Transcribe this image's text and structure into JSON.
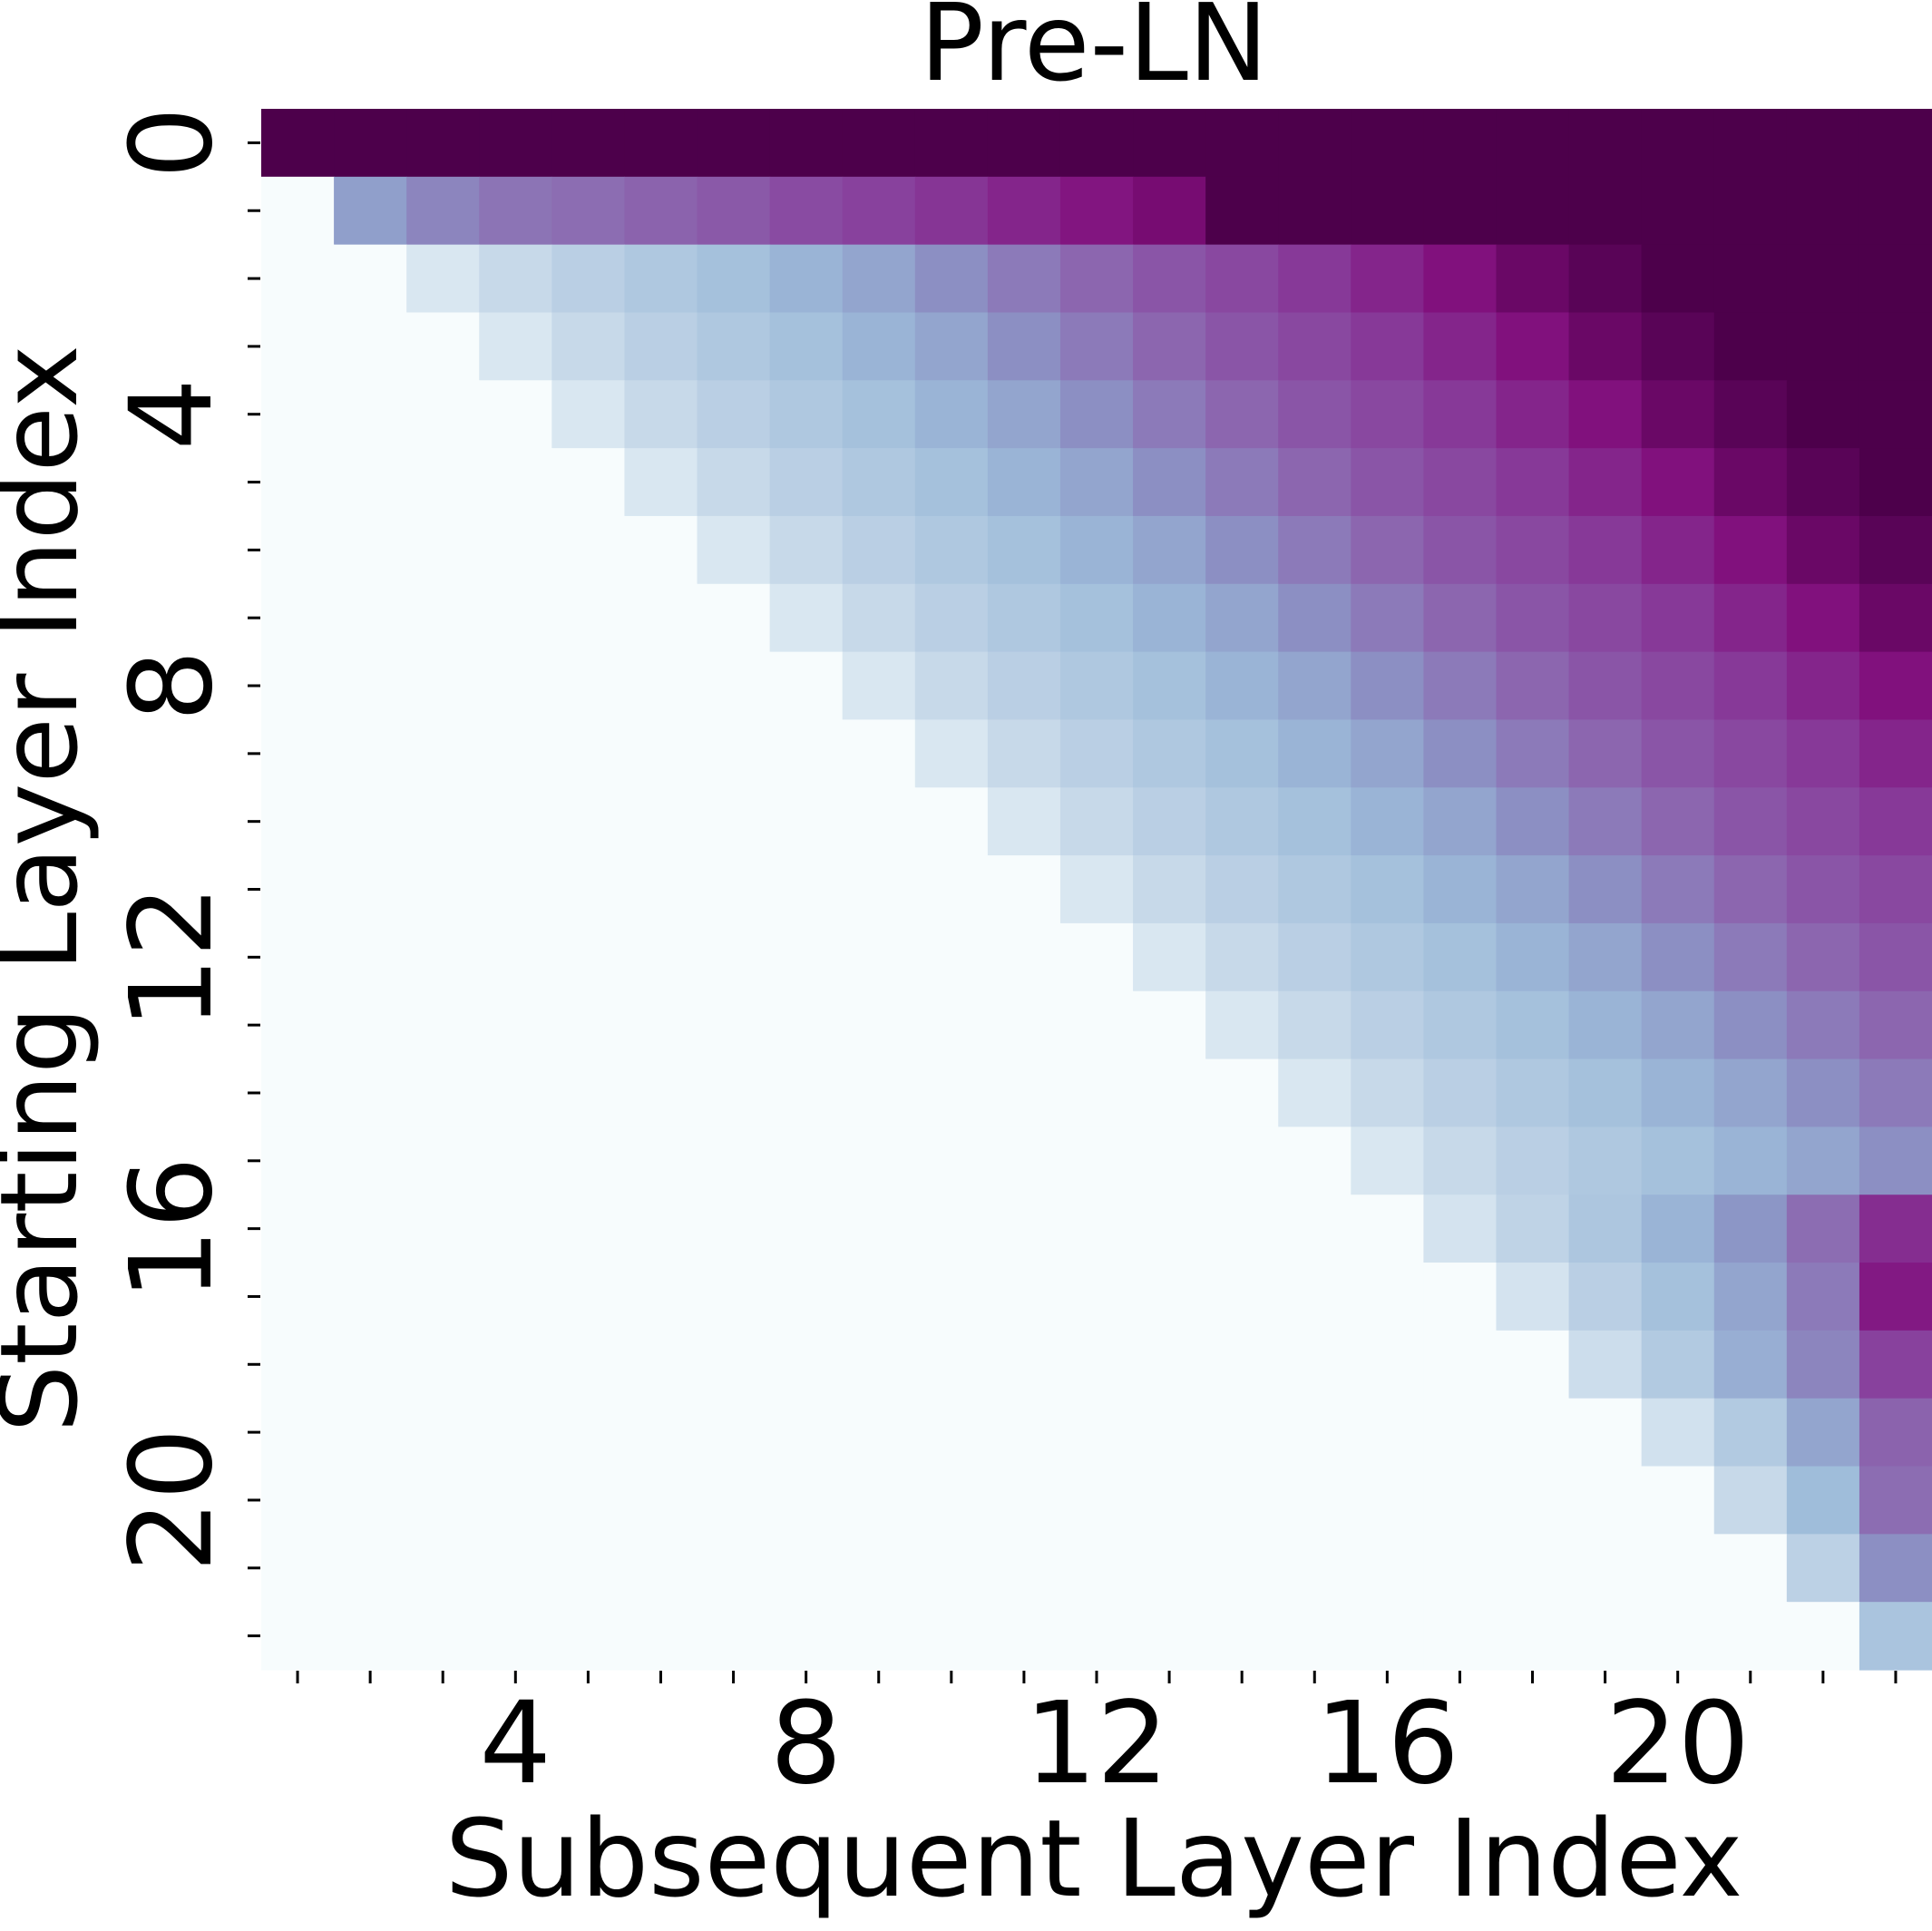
{
  "chart_data": {
    "type": "heatmap",
    "title": "Pre-LN",
    "x_label": "Subsequent Layer Index",
    "y_label": "Starting Layer Index",
    "x_categories": [
      null,
      null,
      null,
      4,
      null,
      null,
      null,
      8,
      null,
      null,
      null,
      12,
      null,
      null,
      null,
      16,
      null,
      null,
      null,
      20,
      null,
      null,
      null
    ],
    "y_categories": [
      0,
      null,
      null,
      null,
      4,
      null,
      null,
      null,
      8,
      null,
      null,
      null,
      12,
      null,
      null,
      null,
      16,
      null,
      null,
      null,
      20,
      null,
      null
    ],
    "colormap": [
      "#f7fcfd",
      "#e0ecf4",
      "#bfd3e6",
      "#9ebcda",
      "#8c96c6",
      "#8c6bb1",
      "#88419d",
      "#810f7c",
      "#4d004b"
    ],
    "zlim": [
      0,
      1
    ],
    "values": [
      [
        1,
        1,
        1,
        1,
        1,
        1,
        1,
        1,
        1,
        1,
        1,
        1,
        1,
        1,
        1,
        1,
        1,
        1,
        1,
        1,
        1,
        1,
        1
      ],
      [
        0,
        0.47,
        0.55,
        0.6,
        0.62,
        0.65,
        0.68,
        0.72,
        0.75,
        0.78,
        0.82,
        0.86,
        0.9,
        1,
        1,
        1,
        1,
        1,
        1,
        1,
        1,
        1,
        1
      ],
      [
        0,
        0,
        0.15,
        0.22,
        0.27,
        0.31,
        0.35,
        0.4,
        0.45,
        0.52,
        0.58,
        0.64,
        0.69,
        0.73,
        0.77,
        0.82,
        0.87,
        0.93,
        0.97,
        1,
        1,
        1,
        1
      ],
      [
        0,
        0,
        0,
        0.15,
        0.22,
        0.27,
        0.31,
        0.35,
        0.4,
        0.45,
        0.52,
        0.58,
        0.64,
        0.69,
        0.73,
        0.77,
        0.82,
        0.87,
        0.93,
        0.97,
        1,
        1,
        1
      ],
      [
        0,
        0,
        0,
        0,
        0.15,
        0.22,
        0.27,
        0.31,
        0.35,
        0.4,
        0.45,
        0.52,
        0.58,
        0.64,
        0.69,
        0.73,
        0.77,
        0.82,
        0.87,
        0.93,
        0.97,
        1,
        1
      ],
      [
        0,
        0,
        0,
        0,
        0,
        0.15,
        0.22,
        0.27,
        0.31,
        0.35,
        0.4,
        0.45,
        0.52,
        0.58,
        0.64,
        0.69,
        0.73,
        0.77,
        0.82,
        0.87,
        0.93,
        0.97,
        1
      ],
      [
        0,
        0,
        0,
        0,
        0,
        0,
        0.15,
        0.22,
        0.27,
        0.31,
        0.35,
        0.4,
        0.45,
        0.52,
        0.58,
        0.64,
        0.69,
        0.73,
        0.77,
        0.82,
        0.87,
        0.93,
        0.97
      ],
      [
        0,
        0,
        0,
        0,
        0,
        0,
        0,
        0.15,
        0.22,
        0.27,
        0.31,
        0.35,
        0.4,
        0.45,
        0.52,
        0.58,
        0.64,
        0.69,
        0.73,
        0.77,
        0.82,
        0.87,
        0.93
      ],
      [
        0,
        0,
        0,
        0,
        0,
        0,
        0,
        0,
        0.15,
        0.22,
        0.27,
        0.31,
        0.35,
        0.4,
        0.45,
        0.52,
        0.58,
        0.64,
        0.69,
        0.73,
        0.77,
        0.82,
        0.87
      ],
      [
        0,
        0,
        0,
        0,
        0,
        0,
        0,
        0,
        0,
        0.15,
        0.22,
        0.27,
        0.31,
        0.35,
        0.4,
        0.45,
        0.52,
        0.58,
        0.64,
        0.69,
        0.73,
        0.77,
        0.82
      ],
      [
        0,
        0,
        0,
        0,
        0,
        0,
        0,
        0,
        0,
        0,
        0.15,
        0.22,
        0.27,
        0.31,
        0.35,
        0.4,
        0.45,
        0.52,
        0.58,
        0.64,
        0.69,
        0.73,
        0.77
      ],
      [
        0,
        0,
        0,
        0,
        0,
        0,
        0,
        0,
        0,
        0,
        0,
        0.15,
        0.22,
        0.27,
        0.31,
        0.35,
        0.4,
        0.45,
        0.52,
        0.58,
        0.64,
        0.69,
        0.73
      ],
      [
        0,
        0,
        0,
        0,
        0,
        0,
        0,
        0,
        0,
        0,
        0,
        0,
        0.15,
        0.22,
        0.27,
        0.31,
        0.35,
        0.4,
        0.45,
        0.52,
        0.58,
        0.64,
        0.69
      ],
      [
        0,
        0,
        0,
        0,
        0,
        0,
        0,
        0,
        0,
        0,
        0,
        0,
        0,
        0.15,
        0.22,
        0.27,
        0.31,
        0.35,
        0.4,
        0.45,
        0.52,
        0.58,
        0.64
      ],
      [
        0,
        0,
        0,
        0,
        0,
        0,
        0,
        0,
        0,
        0,
        0,
        0,
        0,
        0,
        0.15,
        0.22,
        0.27,
        0.31,
        0.35,
        0.4,
        0.45,
        0.52,
        0.58
      ],
      [
        0,
        0,
        0,
        0,
        0,
        0,
        0,
        0,
        0,
        0,
        0,
        0,
        0,
        0,
        0,
        0.15,
        0.22,
        0.27,
        0.31,
        0.35,
        0.4,
        0.45,
        0.52
      ],
      [
        0,
        0,
        0,
        0,
        0,
        0,
        0,
        0,
        0,
        0,
        0,
        0,
        0,
        0,
        0,
        0,
        0.17,
        0.25,
        0.32,
        0.4,
        0.5,
        0.62,
        0.8
      ],
      [
        0,
        0,
        0,
        0,
        0,
        0,
        0,
        0,
        0,
        0,
        0,
        0,
        0,
        0,
        0,
        0,
        0,
        0.17,
        0.27,
        0.35,
        0.45,
        0.58,
        0.85
      ],
      [
        0,
        0,
        0,
        0,
        0,
        0,
        0,
        0,
        0,
        0,
        0,
        0,
        0,
        0,
        0,
        0,
        0,
        0,
        0.2,
        0.3,
        0.42,
        0.55,
        0.75
      ],
      [
        0,
        0,
        0,
        0,
        0,
        0,
        0,
        0,
        0,
        0,
        0,
        0,
        0,
        0,
        0,
        0,
        0,
        0,
        0,
        0.18,
        0.3,
        0.45,
        0.65
      ],
      [
        0,
        0,
        0,
        0,
        0,
        0,
        0,
        0,
        0,
        0,
        0,
        0,
        0,
        0,
        0,
        0,
        0,
        0,
        0,
        0,
        0.22,
        0.37,
        0.62
      ],
      [
        0,
        0,
        0,
        0,
        0,
        0,
        0,
        0,
        0,
        0,
        0,
        0,
        0,
        0,
        0,
        0,
        0,
        0,
        0,
        0,
        0,
        0.26,
        0.52
      ],
      [
        0,
        0,
        0,
        0,
        0,
        0,
        0,
        0,
        0,
        0,
        0,
        0,
        0,
        0,
        0,
        0,
        0,
        0,
        0,
        0,
        0,
        0,
        0.33
      ]
    ]
  }
}
